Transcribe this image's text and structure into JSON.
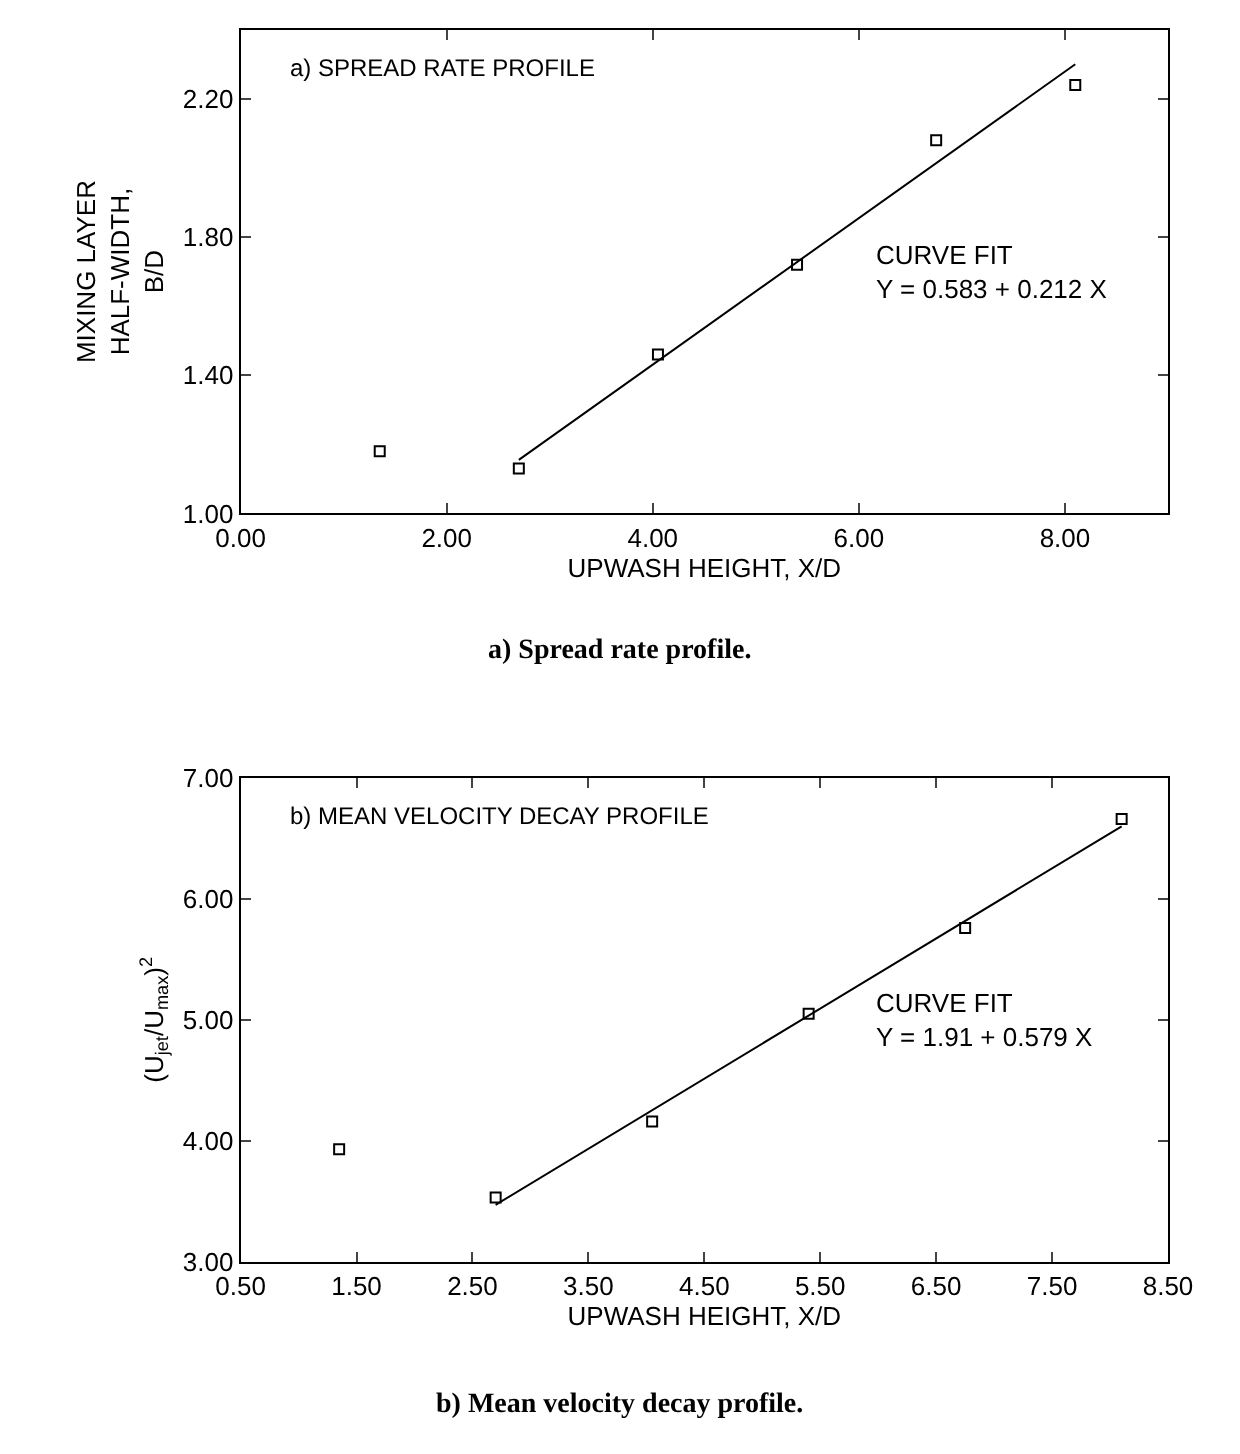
{
  "chart_data": [
    {
      "type": "scatter",
      "xlabel": "UPWASH HEIGHT, X/D",
      "ylabel": "MIXING LAYER\nHALF-WIDTH,\nB/D",
      "annotations": [
        "a) SPREAD RATE PROFILE",
        "CURVE FIT\nY = 0.583 + 0.212 X",
        "a) Spread rate profile."
      ],
      "xlim": [
        0,
        9
      ],
      "xticks": [
        {
          "value": 0,
          "label": "0.00"
        },
        {
          "value": 2,
          "label": "2.00"
        },
        {
          "value": 4,
          "label": "4.00"
        },
        {
          "value": 6,
          "label": "6.00"
        },
        {
          "value": 8,
          "label": "8.00"
        }
      ],
      "ylim": [
        1.0,
        2.4
      ],
      "yticks": [
        {
          "value": 1.0,
          "label": "1.00"
        },
        {
          "value": 1.4,
          "label": "1.40"
        },
        {
          "value": 1.8,
          "label": "1.80"
        },
        {
          "value": 2.2,
          "label": "2.20"
        }
      ],
      "series": [
        {
          "color": "#000000",
          "marker": "square",
          "x": [
            1.35,
            2.7,
            4.05,
            5.4,
            6.75,
            8.1
          ],
          "values": [
            1.18,
            1.13,
            1.46,
            1.72,
            2.08,
            2.24
          ]
        },
        {
          "type": "line",
          "color": "#000000",
          "marker": "none",
          "line_style": "solid",
          "x": [
            2.7,
            8.1
          ],
          "values": [
            1.155,
            2.3
          ]
        }
      ]
    },
    {
      "type": "scatter",
      "xlabel": "UPWASH HEIGHT, X/D",
      "ylabel": "(U$_{jet}$/U$_{max}$)$^{2}$",
      "annotations": [
        "b) MEAN VELOCITY DECAY PROFILE",
        "CURVE FIT\nY = 1.91 + 0.579 X",
        "b) Mean velocity decay profile."
      ],
      "xlim": [
        0.5,
        8.5
      ],
      "xticks": [
        {
          "value": 0.5,
          "label": "0.50"
        },
        {
          "value": 1.5,
          "label": "1.50"
        },
        {
          "value": 2.5,
          "label": "2.50"
        },
        {
          "value": 3.5,
          "label": "3.50"
        },
        {
          "value": 4.5,
          "label": "4.50"
        },
        {
          "value": 5.5,
          "label": "5.50"
        },
        {
          "value": 6.5,
          "label": "6.50"
        },
        {
          "value": 7.5,
          "label": "7.50"
        },
        {
          "value": 8.5,
          "label": "8.50"
        }
      ],
      "ylim": [
        3.0,
        7.0
      ],
      "yticks": [
        {
          "value": 3,
          "label": "3.00"
        },
        {
          "value": 4,
          "label": "4.00"
        },
        {
          "value": 5,
          "label": "5.00"
        },
        {
          "value": 6,
          "label": "6.00"
        },
        {
          "value": 7,
          "label": "7.00"
        }
      ],
      "series": [
        {
          "color": "#000000",
          "marker": "square",
          "x": [
            1.35,
            2.7,
            4.05,
            5.4,
            6.75,
            8.1
          ],
          "values": [
            3.93,
            3.53,
            4.16,
            5.05,
            5.76,
            6.66
          ]
        },
        {
          "type": "line",
          "color": "#000000",
          "marker": "none",
          "line_style": "solid",
          "x": [
            2.7,
            8.1
          ],
          "values": [
            3.47,
            6.6
          ]
        }
      ]
    }
  ]
}
